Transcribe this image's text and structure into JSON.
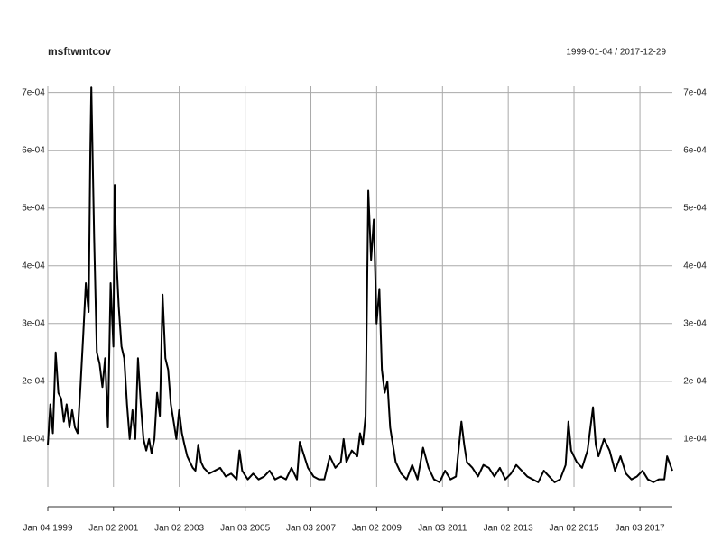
{
  "chart_data": {
    "type": "line",
    "title": "msftwmtcov",
    "date_range": "1999-01-04 / 2017-12-29",
    "xlim": [
      "1999-01-04",
      "2017-12-29"
    ],
    "xticks": [
      {
        "value": "1999-01-04",
        "label": "Jan 04 1999"
      },
      {
        "value": "2001-01-02",
        "label": "Jan 02 2001"
      },
      {
        "value": "2003-01-02",
        "label": "Jan 02 2003"
      },
      {
        "value": "2005-01-03",
        "label": "Jan 03 2005"
      },
      {
        "value": "2007-01-03",
        "label": "Jan 03 2007"
      },
      {
        "value": "2009-01-02",
        "label": "Jan 02 2009"
      },
      {
        "value": "2011-01-03",
        "label": "Jan 03 2011"
      },
      {
        "value": "2013-01-02",
        "label": "Jan 02 2013"
      },
      {
        "value": "2015-01-02",
        "label": "Jan 02 2015"
      },
      {
        "value": "2017-01-03",
        "label": "Jan 03 2017"
      }
    ],
    "ylim": [
      1.7e-05,
      0.000712
    ],
    "yticks": [
      {
        "value": 0.0001,
        "label": "1e-04"
      },
      {
        "value": 0.0002,
        "label": "2e-04"
      },
      {
        "value": 0.0003,
        "label": "3e-04"
      },
      {
        "value": 0.0004,
        "label": "4e-04"
      },
      {
        "value": 0.0005,
        "label": "5e-04"
      },
      {
        "value": 0.0006,
        "label": "6e-04"
      },
      {
        "value": 0.0007,
        "label": "7e-04"
      }
    ],
    "grid": true,
    "series": [
      {
        "name": "msftwmtcov",
        "color": "#000000",
        "x": [
          "1999-01-04",
          "1999-02-01",
          "1999-03-01",
          "1999-04-01",
          "1999-05-01",
          "1999-06-01",
          "1999-07-01",
          "1999-08-01",
          "1999-09-01",
          "1999-10-01",
          "1999-11-01",
          "1999-12-01",
          "2000-01-01",
          "2000-02-01",
          "2000-03-01",
          "2000-04-01",
          "2000-04-20",
          "2000-05-01",
          "2000-06-01",
          "2000-07-01",
          "2000-08-01",
          "2000-09-01",
          "2000-10-01",
          "2000-11-01",
          "2000-12-01",
          "2001-01-01",
          "2001-01-15",
          "2001-02-01",
          "2001-03-01",
          "2001-04-01",
          "2001-05-01",
          "2001-06-01",
          "2001-07-01",
          "2001-08-01",
          "2001-09-01",
          "2001-10-01",
          "2001-11-01",
          "2001-12-01",
          "2002-01-01",
          "2002-02-01",
          "2002-03-01",
          "2002-04-01",
          "2002-05-01",
          "2002-06-01",
          "2002-07-01",
          "2002-08-01",
          "2002-09-01",
          "2002-10-01",
          "2002-11-01",
          "2002-12-01",
          "2003-01-01",
          "2003-02-01",
          "2003-03-01",
          "2003-04-01",
          "2003-05-01",
          "2003-06-01",
          "2003-07-01",
          "2003-08-01",
          "2003-09-01",
          "2003-10-01",
          "2003-11-01",
          "2003-12-01",
          "2004-02-01",
          "2004-04-01",
          "2004-06-01",
          "2004-08-01",
          "2004-10-01",
          "2004-11-01",
          "2004-12-01",
          "2005-02-01",
          "2005-04-01",
          "2005-06-01",
          "2005-08-01",
          "2005-10-01",
          "2005-12-01",
          "2006-02-01",
          "2006-04-01",
          "2006-06-01",
          "2006-08-01",
          "2006-09-01",
          "2006-10-01",
          "2006-12-01",
          "2007-02-01",
          "2007-04-01",
          "2007-06-01",
          "2007-08-01",
          "2007-10-01",
          "2007-12-01",
          "2008-01-01",
          "2008-02-01",
          "2008-04-01",
          "2008-06-01",
          "2008-07-01",
          "2008-08-01",
          "2008-09-01",
          "2008-10-01",
          "2008-11-01",
          "2008-12-01",
          "2009-01-01",
          "2009-02-01",
          "2009-03-01",
          "2009-04-01",
          "2009-05-01",
          "2009-06-01",
          "2009-07-01",
          "2009-08-01",
          "2009-10-01",
          "2009-12-01",
          "2010-02-01",
          "2010-04-01",
          "2010-06-01",
          "2010-08-01",
          "2010-10-01",
          "2010-12-01",
          "2011-02-01",
          "2011-04-01",
          "2011-06-01",
          "2011-08-01",
          "2011-09-01",
          "2011-10-01",
          "2011-12-01",
          "2012-02-01",
          "2012-04-01",
          "2012-06-01",
          "2012-08-01",
          "2012-10-01",
          "2012-12-01",
          "2013-02-01",
          "2013-04-01",
          "2013-06-01",
          "2013-08-01",
          "2013-10-01",
          "2013-12-01",
          "2014-02-01",
          "2014-04-01",
          "2014-06-01",
          "2014-08-01",
          "2014-10-01",
          "2014-11-01",
          "2014-12-01",
          "2015-02-01",
          "2015-04-01",
          "2015-06-01",
          "2015-08-01",
          "2015-09-01",
          "2015-10-01",
          "2015-12-01",
          "2016-02-01",
          "2016-04-01",
          "2016-06-01",
          "2016-08-01",
          "2016-10-01",
          "2016-12-01",
          "2017-02-01",
          "2017-04-01",
          "2017-06-01",
          "2017-08-01",
          "2017-10-01",
          "2017-11-01",
          "2017-12-29"
        ],
        "values": [
          9e-05,
          0.00016,
          0.00011,
          0.00025,
          0.00018,
          0.00017,
          0.00013,
          0.00016,
          0.00012,
          0.00015,
          0.00012,
          0.00011,
          0.00019,
          0.00028,
          0.00037,
          0.00032,
          0.0006,
          0.00071,
          0.00045,
          0.00025,
          0.00023,
          0.00019,
          0.00024,
          0.00012,
          0.00037,
          0.00026,
          0.00054,
          0.00042,
          0.00033,
          0.00026,
          0.00024,
          0.00016,
          0.0001,
          0.00015,
          0.0001,
          0.00024,
          0.00016,
          0.0001,
          8e-05,
          0.0001,
          7.5e-05,
          0.0001,
          0.00018,
          0.00014,
          0.00035,
          0.00024,
          0.00022,
          0.00016,
          0.00013,
          0.0001,
          0.00015,
          0.00011,
          9e-05,
          7e-05,
          6e-05,
          5e-05,
          4.5e-05,
          9e-05,
          6e-05,
          5e-05,
          4.5e-05,
          4e-05,
          4.5e-05,
          5e-05,
          3.5e-05,
          4e-05,
          3e-05,
          8e-05,
          4.5e-05,
          3e-05,
          4e-05,
          3e-05,
          3.5e-05,
          4.5e-05,
          3e-05,
          3.5e-05,
          3e-05,
          5e-05,
          3e-05,
          9.5e-05,
          8e-05,
          5e-05,
          3.5e-05,
          3e-05,
          3e-05,
          7e-05,
          5e-05,
          6e-05,
          0.0001,
          6e-05,
          8e-05,
          7e-05,
          0.00011,
          9e-05,
          0.00014,
          0.00053,
          0.00041,
          0.00048,
          0.0003,
          0.00036,
          0.00022,
          0.00018,
          0.0002,
          0.00012,
          9e-05,
          6e-05,
          4e-05,
          3e-05,
          5.5e-05,
          3e-05,
          8.5e-05,
          5e-05,
          3e-05,
          2.5e-05,
          4.5e-05,
          3e-05,
          3.5e-05,
          0.00013,
          9e-05,
          6e-05,
          5e-05,
          3.5e-05,
          5.5e-05,
          5e-05,
          3.5e-05,
          5e-05,
          3e-05,
          4e-05,
          5.5e-05,
          4.5e-05,
          3.5e-05,
          3e-05,
          2.5e-05,
          4.5e-05,
          3.5e-05,
          2.5e-05,
          3e-05,
          5.5e-05,
          0.00013,
          8e-05,
          6e-05,
          5e-05,
          8e-05,
          0.000155,
          9e-05,
          7e-05,
          0.0001,
          8e-05,
          4.5e-05,
          7e-05,
          4e-05,
          3e-05,
          3.5e-05,
          4.5e-05,
          3e-05,
          2.5e-05,
          3e-05,
          3e-05,
          7e-05,
          4.5e-05
        ]
      }
    ]
  }
}
